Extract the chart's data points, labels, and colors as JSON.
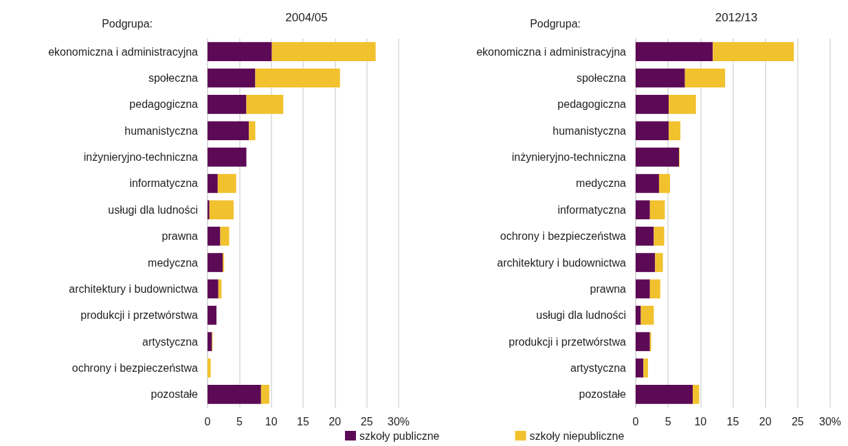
{
  "chart_data": [
    {
      "type": "bar",
      "orientation": "horizontal",
      "stacked": true,
      "title": "2004/05",
      "ylabel": "Podgrupa:",
      "categories": [
        "ekonomiczna i administracyjna",
        "społeczna",
        "pedagogiczna",
        "humanistyczna",
        "inżynieryjno-techniczna",
        "informatyczna",
        "usługi dla ludności",
        "prawna",
        "medyczna",
        "architektury i budownictwa",
        "produkcji i przetwórstwa",
        "artystyczna",
        "ochrony i bezpieczeństwa",
        "pozostałe"
      ],
      "series": [
        {
          "name": "szkoły publiczne",
          "color": "#5c0a55",
          "values": [
            10.1,
            7.5,
            6.1,
            6.5,
            6.1,
            1.6,
            0.3,
            2.0,
            2.4,
            1.7,
            1.4,
            0.7,
            0,
            8.4
          ]
        },
        {
          "name": "szkoły niepubliczne",
          "color": "#f2c12e",
          "values": [
            16.3,
            13.3,
            5.8,
            1.0,
            0,
            2.9,
            3.8,
            1.4,
            0.2,
            0.5,
            0,
            0.1,
            0.5,
            1.3
          ]
        }
      ],
      "xlim": [
        0,
        30
      ],
      "xticks": [
        0,
        5,
        10,
        15,
        20,
        25,
        {
          "value": 30,
          "label": "30%"
        }
      ],
      "grid": "x",
      "legend": "bottom"
    },
    {
      "type": "bar",
      "orientation": "horizontal",
      "stacked": true,
      "title": "2012/13",
      "ylabel": "Podgrupa:",
      "categories": [
        "ekonomiczna i administracyjna",
        "społeczna",
        "pedagogiczna",
        "humanistyczna",
        "inżynieryjno-techniczna",
        "medyczna",
        "informatyczna",
        "ochrony i bezpieczeństwa",
        "architektury i budownictwa",
        "prawna",
        "usługi dla ludności",
        "produkcji i przetwórstwa",
        "artystyczna",
        "pozostałe"
      ],
      "series": [
        {
          "color": "#5c0a55",
          "values": [
            11.9,
            7.6,
            5.1,
            5.1,
            6.7,
            3.6,
            2.2,
            2.8,
            3.0,
            2.2,
            0.8,
            2.2,
            1.2,
            8.8
          ]
        },
        {
          "color": "#f2c12e",
          "values": [
            12.5,
            6.2,
            4.2,
            1.8,
            0.1,
            1.7,
            2.3,
            1.6,
            1.2,
            1.6,
            2.0,
            0.2,
            0.7,
            1.0
          ]
        }
      ],
      "xlim": [
        0,
        30
      ],
      "xticks": [
        0,
        5,
        10,
        15,
        20,
        25,
        {
          "value": 30,
          "label": "30%"
        }
      ],
      "grid": "x"
    }
  ]
}
